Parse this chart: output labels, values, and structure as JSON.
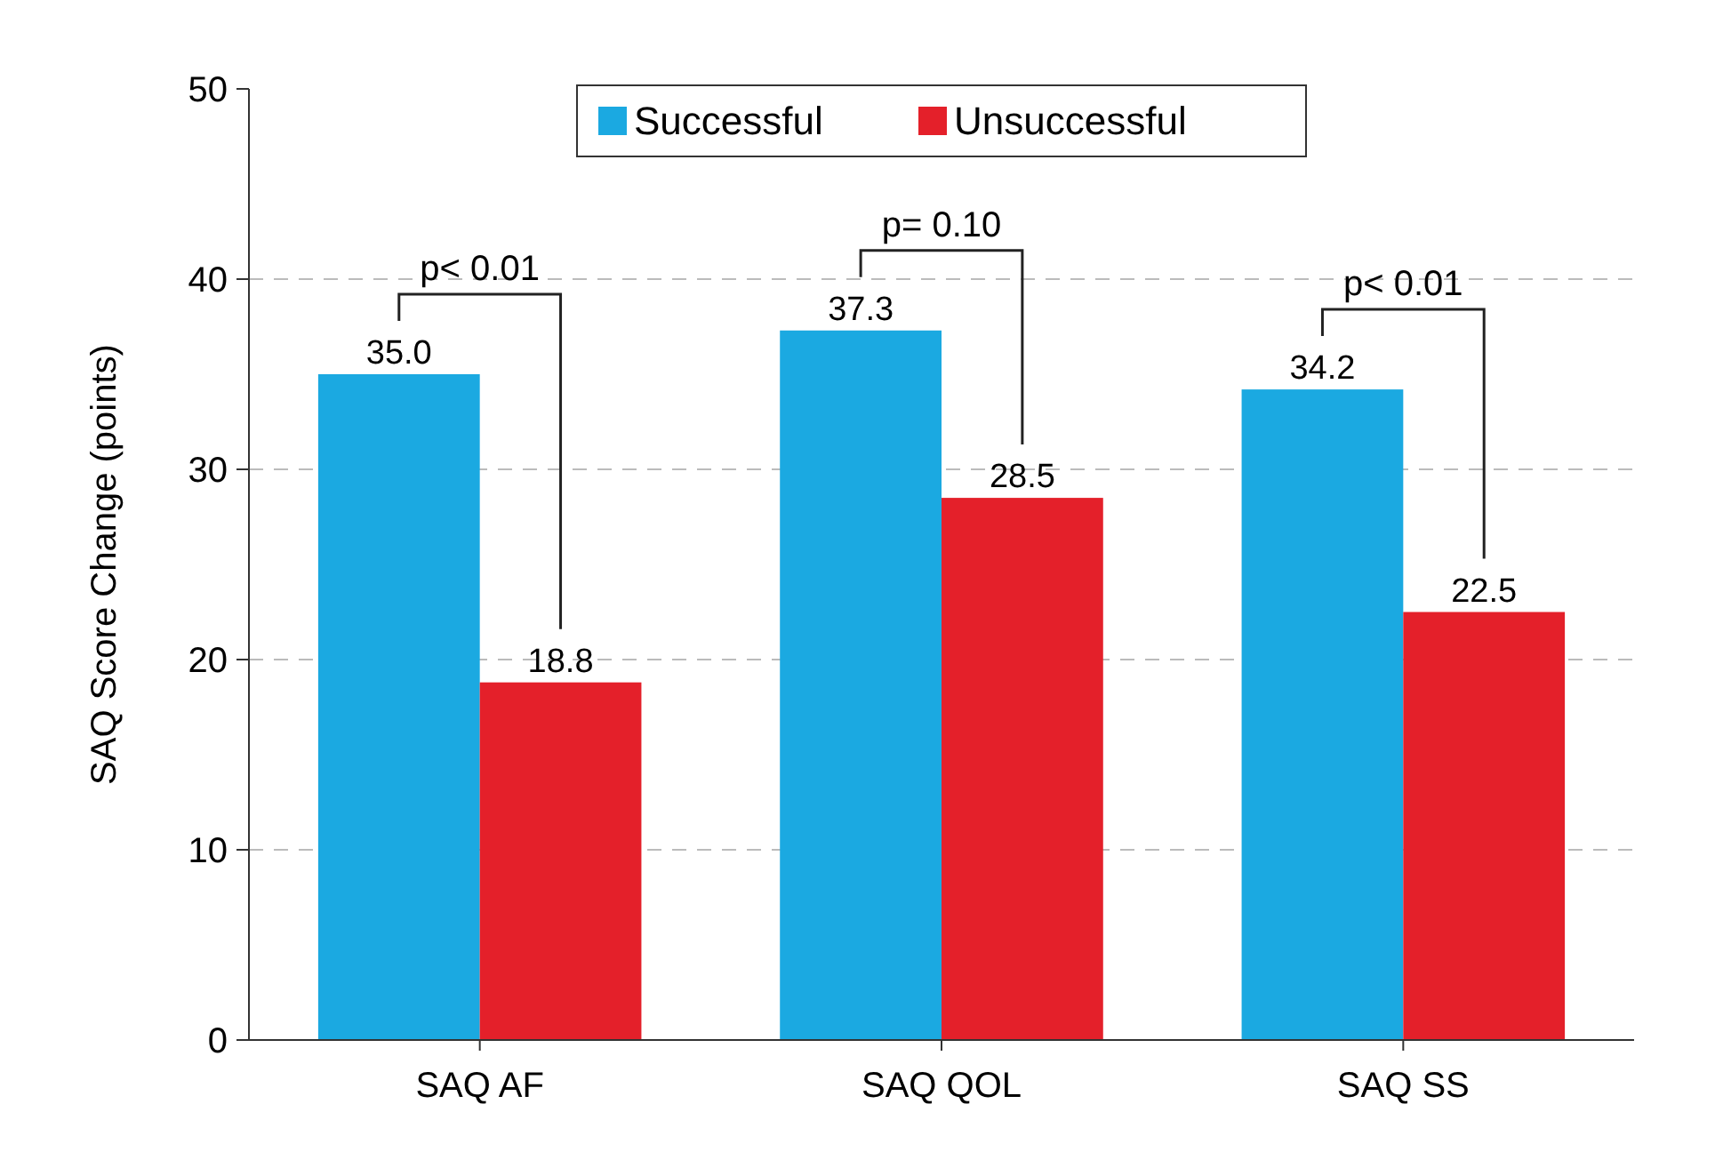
{
  "chart_data": {
    "type": "bar",
    "ylabel": "SAQ Score Change  (points)",
    "categories": [
      "SAQ AF",
      "SAQ QOL",
      "SAQ SS"
    ],
    "series": [
      {
        "name": "Successful",
        "color": "#1ba9e1",
        "values": [
          35.0,
          37.3,
          34.2
        ],
        "value_labels": [
          "35.0",
          "37.3",
          "34.2"
        ]
      },
      {
        "name": "Unsuccessful",
        "color": "#e4202a",
        "values": [
          18.8,
          28.5,
          22.5
        ],
        "value_labels": [
          "18.8",
          "28.5",
          "22.5"
        ]
      }
    ],
    "ylim": [
      0,
      50
    ],
    "yticks": [
      0,
      10,
      20,
      30,
      40,
      50
    ],
    "grid": "y",
    "legend": "top",
    "annotations": [
      "p< 0.01",
      "p= 0.10",
      "p< 0.01"
    ]
  }
}
